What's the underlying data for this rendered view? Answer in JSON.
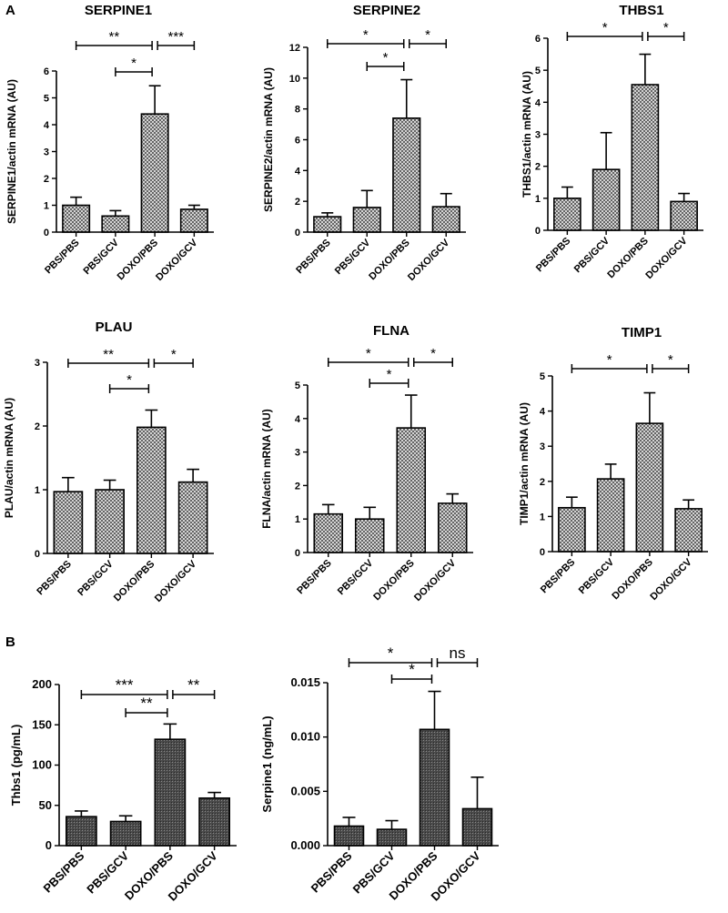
{
  "panels": [
    {
      "letter": "A"
    },
    {
      "letter": "B"
    }
  ],
  "colors": {
    "bar_pattern": "#5a5a5a",
    "stroke": "#000000",
    "background": "#ffffff"
  },
  "chart_data": [
    {
      "type": "bar",
      "panel": "A",
      "title": "SERPINE1",
      "ylabel": "SERPINE1/actin mRNA (AU)",
      "categories": [
        "PBS/PBS",
        "PBS/GCV",
        "DOXO/PBS",
        "DOXO/GCV"
      ],
      "values": [
        1.0,
        0.6,
        4.4,
        0.85
      ],
      "errors": [
        0.3,
        0.2,
        1.05,
        0.15
      ],
      "ylim": [
        0,
        6
      ],
      "yticks": [
        0,
        1,
        2,
        3,
        4,
        5,
        6
      ],
      "ytick_labels": [
        "0",
        "1",
        "2",
        "3",
        "4",
        "5",
        "6"
      ],
      "significance": [
        {
          "from": 0,
          "to": 2,
          "label": "**",
          "level": 2
        },
        {
          "from": 2,
          "to": 3,
          "label": "***",
          "level": 2
        },
        {
          "from": 1,
          "to": 2,
          "label": "*",
          "level": 1
        }
      ]
    },
    {
      "type": "bar",
      "panel": "A",
      "title": "SERPINE2",
      "ylabel": "SERPINE2/actin mRNA (AU)",
      "categories": [
        "PBS/PBS",
        "PBS/GCV",
        "DOXO/PBS",
        "DOXO/GCV"
      ],
      "values": [
        1.0,
        1.6,
        7.4,
        1.65
      ],
      "errors": [
        0.25,
        1.1,
        2.5,
        0.85
      ],
      "ylim": [
        0,
        12
      ],
      "yticks": [
        0,
        2,
        4,
        6,
        8,
        10,
        12
      ],
      "ytick_labels": [
        "0",
        "2",
        "4",
        "6",
        "8",
        "10",
        "12"
      ],
      "significance": [
        {
          "from": 0,
          "to": 2,
          "label": "*",
          "level": 2
        },
        {
          "from": 2,
          "to": 3,
          "label": "*",
          "level": 2
        },
        {
          "from": 1,
          "to": 2,
          "label": "*",
          "level": 1
        }
      ]
    },
    {
      "type": "bar",
      "panel": "A",
      "title": "THBS1",
      "ylabel": "THBS1/actin mRNA (AU)",
      "categories": [
        "PBS/PBS",
        "PBS/GCV",
        "DOXO/PBS",
        "DOXO/GCV"
      ],
      "values": [
        1.0,
        1.9,
        4.55,
        0.9
      ],
      "errors": [
        0.35,
        1.15,
        0.95,
        0.25
      ],
      "ylim": [
        0,
        6
      ],
      "yticks": [
        0,
        1,
        2,
        3,
        4,
        5,
        6
      ],
      "ytick_labels": [
        "0",
        "1",
        "2",
        "3",
        "4",
        "5",
        "6"
      ],
      "significance": [
        {
          "from": 0,
          "to": 2,
          "label": "*",
          "level": 2
        },
        {
          "from": 2,
          "to": 3,
          "label": "*",
          "level": 2
        }
      ]
    },
    {
      "type": "bar",
      "panel": "A",
      "title": "PLAU",
      "ylabel": "PLAU/actin mRNA (AU)",
      "categories": [
        "PBS/PBS",
        "PBS/GCV",
        "DOXO/PBS",
        "DOXO/GCV"
      ],
      "values": [
        0.97,
        1.0,
        1.98,
        1.12
      ],
      "errors": [
        0.22,
        0.15,
        0.27,
        0.2
      ],
      "ylim": [
        0,
        3
      ],
      "yticks": [
        0,
        1,
        2,
        3
      ],
      "ytick_labels": [
        "0",
        "1",
        "2",
        "3"
      ],
      "significance": [
        {
          "from": 0,
          "to": 2,
          "label": "**",
          "level": 2
        },
        {
          "from": 2,
          "to": 3,
          "label": "*",
          "level": 2
        },
        {
          "from": 1,
          "to": 2,
          "label": "*",
          "level": 1
        }
      ]
    },
    {
      "type": "bar",
      "panel": "A",
      "title": "FLNA",
      "ylabel": "FLNA/actin mRNA (AU)",
      "categories": [
        "PBS/PBS",
        "PBS/GCV",
        "DOXO/PBS",
        "DOXO/GCV"
      ],
      "values": [
        1.15,
        1.0,
        3.72,
        1.47
      ],
      "errors": [
        0.28,
        0.35,
        0.98,
        0.28
      ],
      "ylim": [
        0,
        5
      ],
      "yticks": [
        0,
        1,
        2,
        3,
        4,
        5
      ],
      "ytick_labels": [
        "0",
        "1",
        "2",
        "3",
        "4",
        "5"
      ],
      "significance": [
        {
          "from": 0,
          "to": 2,
          "label": "*",
          "level": 2
        },
        {
          "from": 2,
          "to": 3,
          "label": "*",
          "level": 2
        },
        {
          "from": 1,
          "to": 2,
          "label": "*",
          "level": 1
        }
      ]
    },
    {
      "type": "bar",
      "panel": "A",
      "title": "TIMP1",
      "ylabel": "TIMP1/actin mRNA (AU)",
      "categories": [
        "PBS/PBS",
        "PBS/GCV",
        "DOXO/PBS",
        "DOXO/GCV"
      ],
      "values": [
        1.25,
        2.07,
        3.65,
        1.22
      ],
      "errors": [
        0.3,
        0.42,
        0.87,
        0.25
      ],
      "ylim": [
        0,
        5
      ],
      "yticks": [
        0,
        1,
        2,
        3,
        4,
        5
      ],
      "ytick_labels": [
        "0",
        "1",
        "2",
        "3",
        "4",
        "5"
      ],
      "significance": [
        {
          "from": 0,
          "to": 2,
          "label": "*",
          "level": 2
        },
        {
          "from": 2,
          "to": 3,
          "label": "*",
          "level": 2
        }
      ]
    },
    {
      "type": "bar",
      "panel": "B",
      "title": "",
      "ylabel": "Thbs1 (pg/mL)",
      "categories": [
        "PBS/PBS",
        "PBS/GCV",
        "DOXO/PBS",
        "DOXO/GCV"
      ],
      "values": [
        36,
        30,
        132,
        59
      ],
      "errors": [
        7,
        7,
        19,
        7
      ],
      "ylim": [
        0,
        200
      ],
      "yticks": [
        0,
        50,
        100,
        150,
        200
      ],
      "ytick_labels": [
        "0",
        "50",
        "100",
        "150",
        "200"
      ],
      "significance": [
        {
          "from": 0,
          "to": 2,
          "label": "***",
          "level": 2
        },
        {
          "from": 2,
          "to": 3,
          "label": "**",
          "level": 2
        },
        {
          "from": 1,
          "to": 2,
          "label": "**",
          "level": 1
        }
      ]
    },
    {
      "type": "bar",
      "panel": "B",
      "title": "",
      "ylabel": "Serpine1 (ng/mL)",
      "categories": [
        "PBS/PBS",
        "PBS/GCV",
        "DOXO/PBS",
        "DOXO/GCV"
      ],
      "values": [
        0.0018,
        0.0015,
        0.0107,
        0.0034
      ],
      "errors": [
        0.0008,
        0.0008,
        0.0035,
        0.0029
      ],
      "ylim": [
        0,
        0.015
      ],
      "yticks": [
        0,
        0.005,
        0.01,
        0.015
      ],
      "ytick_labels": [
        "0.000",
        "0.005",
        "0.010",
        "0.015"
      ],
      "significance": [
        {
          "from": 0,
          "to": 2,
          "label": "*",
          "level": 2
        },
        {
          "from": 2,
          "to": 3,
          "label": "ns",
          "level": 2
        },
        {
          "from": 1,
          "to": 2,
          "label": "*",
          "level": 1
        }
      ]
    }
  ]
}
